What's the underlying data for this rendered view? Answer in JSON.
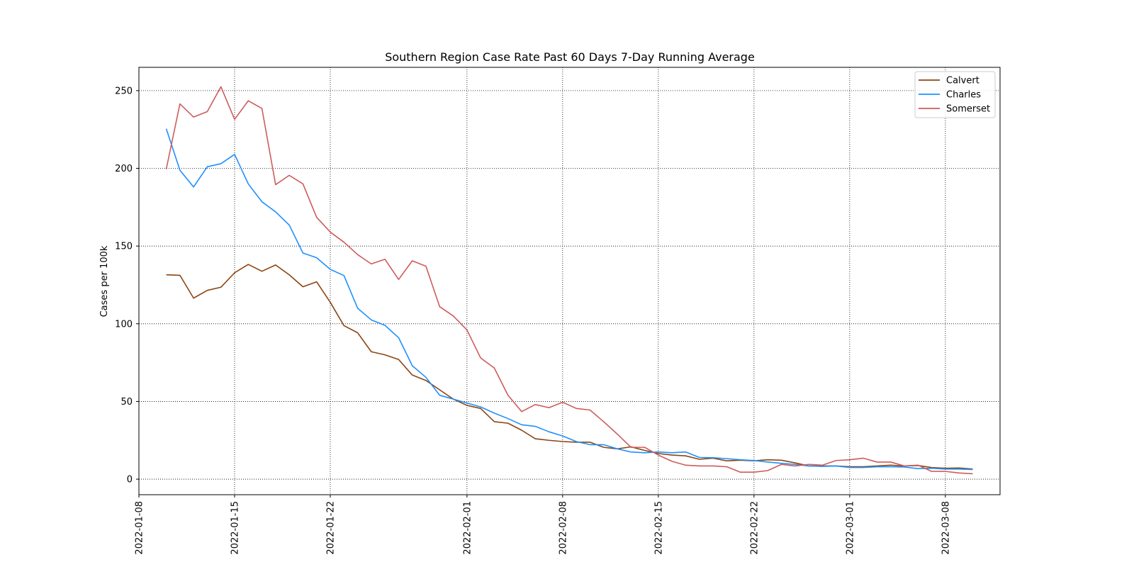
{
  "chart_data": {
    "type": "line",
    "title": "Southern Region Case Rate  Past 60 Days 7-Day Running Average",
    "xlabel": "",
    "ylabel": "Cases per 100k",
    "x_start": "2022-01-10",
    "x_end": "2022-03-10",
    "xlim": [
      "2022-01-08",
      "2022-03-12"
    ],
    "ylim": [
      -10,
      265
    ],
    "x_ticks": [
      "2022-01-08",
      "2022-01-15",
      "2022-01-22",
      "2022-02-01",
      "2022-02-08",
      "2022-02-15",
      "2022-02-22",
      "2022-03-01",
      "2022-03-08"
    ],
    "y_ticks": [
      0,
      50,
      100,
      150,
      200,
      250
    ],
    "grid": true,
    "grid_style": "dotted",
    "legend_position": "top-right",
    "series": [
      {
        "name": "Calvert",
        "color": "#8B4513",
        "values": [
          131.5,
          131.2,
          116.5,
          121.5,
          123.5,
          132.8,
          138.2,
          133.8,
          137.8,
          131.5,
          123.8,
          127.0,
          113.8,
          98.8,
          94.2,
          82.0,
          80.0,
          77.0,
          67.0,
          63.5,
          57.5,
          51.5,
          47.5,
          45.5,
          37.0,
          36.0,
          31.5,
          26.0,
          25.0,
          24.2,
          23.8,
          23.8,
          20.5,
          19.5,
          20.8,
          18.5,
          16.5,
          15.5,
          15.0,
          12.8,
          13.5,
          11.8,
          12.2,
          11.8,
          12.5,
          12.2,
          10.5,
          8.5,
          8.5,
          8.5,
          8.0,
          8.0,
          8.5,
          9.0,
          8.5,
          8.8,
          7.5,
          7.0,
          7.2,
          6.5
        ]
      },
      {
        "name": "Charles",
        "color": "#1E90FF",
        "values": [
          225.5,
          198.8,
          188.0,
          201.0,
          203.0,
          209.0,
          190.0,
          178.5,
          172.0,
          163.5,
          145.5,
          142.5,
          135.0,
          131.0,
          110.0,
          102.5,
          99.0,
          91.0,
          73.0,
          65.5,
          54.0,
          51.5,
          49.0,
          46.5,
          42.5,
          39.0,
          35.0,
          34.0,
          30.5,
          27.8,
          24.2,
          22.2,
          22.2,
          19.5,
          17.5,
          17.0,
          17.5,
          17.0,
          17.5,
          14.0,
          13.8,
          13.2,
          12.5,
          12.0,
          11.0,
          10.2,
          9.5,
          8.5,
          8.2,
          8.5,
          7.5,
          7.5,
          8.0,
          8.0,
          7.8,
          6.8,
          7.0,
          6.5,
          6.5,
          6.2
        ]
      },
      {
        "name": "Somerset",
        "color": "#CD5C5C",
        "values": [
          199.5,
          241.5,
          233.0,
          236.5,
          252.5,
          231.5,
          243.5,
          238.5,
          189.5,
          195.5,
          190.0,
          168.5,
          159.0,
          152.5,
          144.5,
          138.5,
          141.5,
          128.5,
          140.5,
          137.0,
          111.0,
          105.0,
          96.0,
          78.0,
          71.5,
          54.0,
          43.5,
          48.0,
          46.0,
          49.5,
          45.5,
          44.5,
          37.0,
          29.0,
          20.5,
          20.5,
          15.5,
          11.5,
          9.0,
          8.5,
          8.5,
          8.0,
          4.5,
          4.5,
          5.5,
          9.5,
          8.5,
          9.5,
          9.0,
          12.0,
          12.5,
          13.5,
          11.0,
          11.0,
          8.5,
          9.0,
          5.0,
          5.0,
          4.0,
          3.5
        ]
      }
    ]
  }
}
